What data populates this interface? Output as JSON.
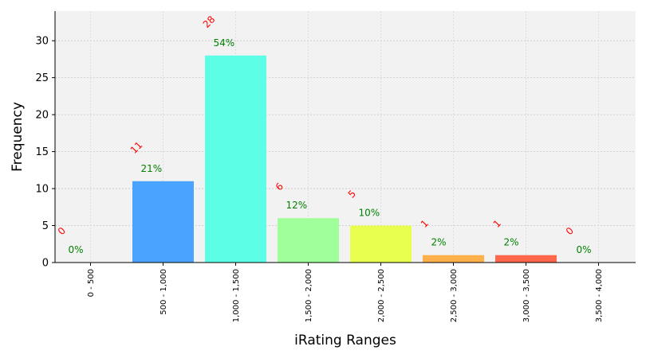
{
  "chart_data": {
    "type": "bar",
    "title": "",
    "xlabel": "iRating Ranges",
    "ylabel": "Frequency",
    "categories": [
      "0 - 500",
      "500 - 1,000",
      "1,000 - 1,500",
      "1,500 - 2,000",
      "2,000 - 2,500",
      "2,500 - 3,000",
      "3,000 - 3,500",
      "3,500 - 4,000"
    ],
    "values": [
      0,
      11,
      28,
      6,
      5,
      1,
      1,
      0
    ],
    "count_labels": [
      "0",
      "11",
      "28",
      "6",
      "5",
      "1",
      "1",
      "0"
    ],
    "percent_labels": [
      "0%",
      "21%",
      "54%",
      "12%",
      "10%",
      "2%",
      "2%",
      "0%"
    ],
    "colors": [
      "#4a90e2",
      "#4aa3ff",
      "#5cffe6",
      "#a0ff9a",
      "#e8ff50",
      "#ffb04a",
      "#ff664a",
      "#ff4a4a"
    ],
    "yticks": [
      0,
      5,
      10,
      15,
      20,
      25,
      30
    ],
    "ylim": [
      0,
      34
    ],
    "grid": true,
    "background": "#f2f2f2"
  }
}
